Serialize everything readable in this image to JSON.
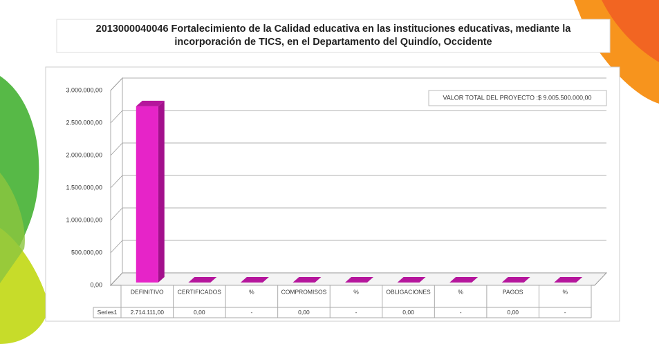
{
  "chart_data": {
    "type": "bar3d",
    "title": "2013000040046  Fortalecimiento de la Calidad educativa en las instituciones educativas, mediante la incorporación de TICS, en el Departamento del Quindío, Occidente",
    "annotation": "VALOR TOTAL DEL PROYECTO :$  9.005.500.000,00",
    "categories": [
      "DEFINITIVO",
      "CERTIFICADOS",
      "%",
      "COMPROMISOS",
      "%",
      "OBLIGACIONES",
      "%",
      "PAGOS",
      "%"
    ],
    "series": [
      {
        "name": "Series1",
        "color": "#e624c8",
        "values": [
          2714111,
          0,
          0,
          0,
          0,
          0,
          0,
          0,
          0
        ],
        "value_labels": [
          "2.714.111,00",
          "0,00",
          "-",
          "0,00",
          "-",
          "0,00",
          "-",
          "0,00",
          "-"
        ]
      }
    ],
    "ylim": [
      0,
      3000000
    ],
    "yticks": [
      {
        "value": 0,
        "label": "0,00"
      },
      {
        "value": 500000,
        "label": "500.000,00"
      },
      {
        "value": 1000000,
        "label": "1.000.000,00"
      },
      {
        "value": 1500000,
        "label": "1.500.000,00"
      },
      {
        "value": 2000000,
        "label": "2.000.000,00"
      },
      {
        "value": 2500000,
        "label": "2.500.000,00"
      },
      {
        "value": 3000000,
        "label": "3.000.000,00"
      }
    ],
    "grid": true
  }
}
